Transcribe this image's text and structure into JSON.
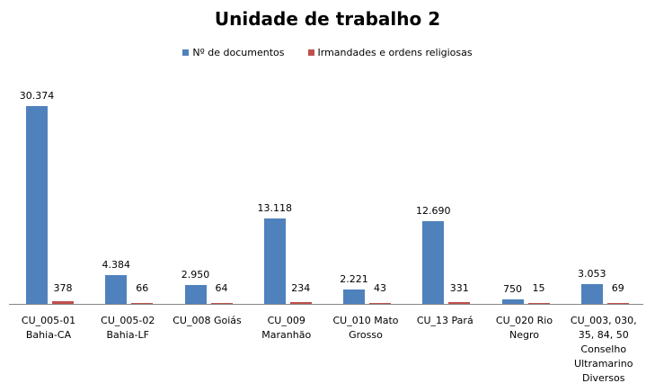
{
  "chart_data": {
    "type": "bar",
    "title": "Unidade de trabalho 2",
    "xlabel": "",
    "ylabel": "",
    "grid": false,
    "legend_position": "top",
    "ylim": [
      0,
      38000
    ],
    "categories": [
      "CU_005-01 Bahia-CA",
      "CU_005-02 Bahia-LF",
      "CU_008 Goiás",
      "CU_009 Maranhão",
      "CU_010 Mato Grosso",
      "CU_13 Pará",
      "CU_020 Rio Negro",
      "CU_003, 030, 35, 84, 50 Conselho Ultramarino Diversos"
    ],
    "series": [
      {
        "name": "Nº de documentos",
        "color": "#4F81BD",
        "values": [
          30374,
          4384,
          2950,
          13118,
          2221,
          12690,
          750,
          3053
        ]
      },
      {
        "name": "Irmandades e ordens religiosas",
        "color": "#C0504D",
        "values": [
          378,
          66,
          64,
          234,
          43,
          331,
          15,
          69
        ]
      }
    ]
  },
  "title": "Unidade de trabalho 2",
  "legend": [
    {
      "label": "Nº de documentos",
      "color": "#4F81BD"
    },
    {
      "label": "Irmandades e ordens religiosas",
      "color": "#C0504D"
    }
  ],
  "categories": [
    {
      "lines": [
        "CU_005-01",
        "Bahia-CA"
      ],
      "blue": {
        "value": 30374,
        "label": "30.374"
      },
      "red": {
        "value": 378,
        "label": "378"
      }
    },
    {
      "lines": [
        "CU_005-02",
        "Bahia-LF"
      ],
      "blue": {
        "value": 4384,
        "label": "4.384"
      },
      "red": {
        "value": 66,
        "label": "66"
      }
    },
    {
      "lines": [
        "CU_008 Goiás"
      ],
      "blue": {
        "value": 2950,
        "label": "2.950"
      },
      "red": {
        "value": 64,
        "label": "64"
      }
    },
    {
      "lines": [
        "CU_009",
        "Maranhão"
      ],
      "blue": {
        "value": 13118,
        "label": "13.118"
      },
      "red": {
        "value": 234,
        "label": "234"
      }
    },
    {
      "lines": [
        "CU_010 Mato",
        "Grosso"
      ],
      "blue": {
        "value": 2221,
        "label": "2.221"
      },
      "red": {
        "value": 43,
        "label": "43"
      }
    },
    {
      "lines": [
        "CU_13 Pará"
      ],
      "blue": {
        "value": 12690,
        "label": "12.690"
      },
      "red": {
        "value": 331,
        "label": "331"
      }
    },
    {
      "lines": [
        "CU_020 Rio",
        "Negro"
      ],
      "blue": {
        "value": 750,
        "label": "750"
      },
      "red": {
        "value": 15,
        "label": "15"
      }
    },
    {
      "lines": [
        "CU_003, 030,",
        "35, 84, 50",
        "Conselho",
        "Ultramarino",
        "Diversos"
      ],
      "blue": {
        "value": 3053,
        "label": "3.053"
      },
      "red": {
        "value": 69,
        "label": "69"
      }
    }
  ]
}
